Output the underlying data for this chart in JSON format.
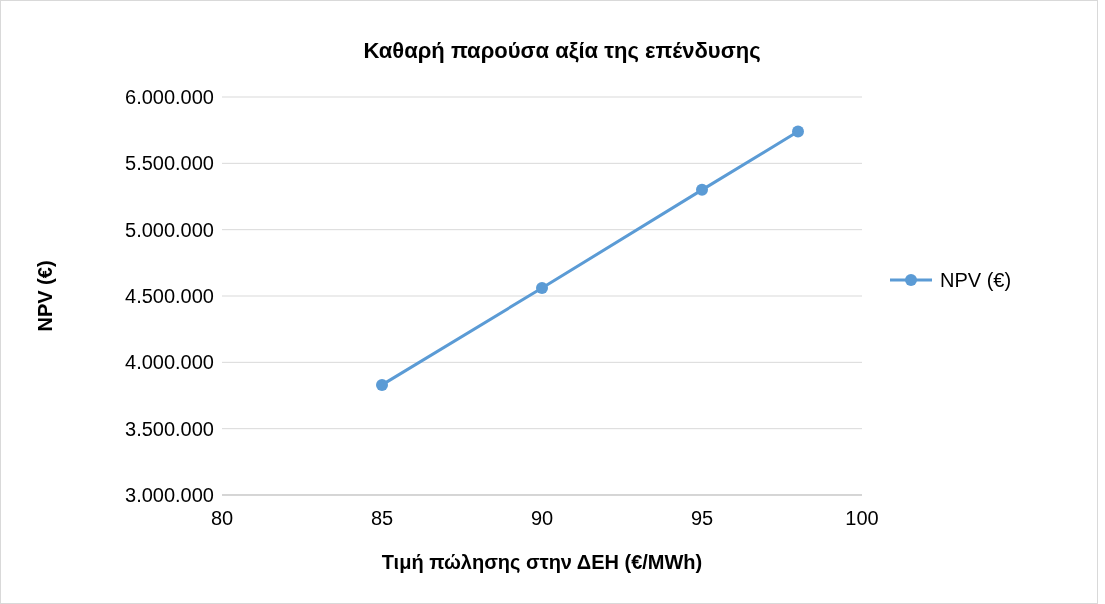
{
  "chart_data": {
    "type": "line",
    "title": "Καθαρή παρούσα αξία της επένδυσης",
    "xlabel": "Τιμή πώλησης στην ΔΕΗ (€/MWh)",
    "ylabel": "NPV (€)",
    "x": [
      85,
      90,
      95,
      98
    ],
    "series": [
      {
        "name": "NPV (€)",
        "color": "#5b9bd5",
        "values": [
          3830000,
          4560000,
          5300000,
          5740000
        ]
      }
    ],
    "xlim": [
      80,
      100
    ],
    "xticks": [
      80,
      85,
      90,
      95,
      100
    ],
    "ylim": [
      3000000,
      6000000
    ],
    "yticks": [
      {
        "value": 3000000,
        "label": "3.000.000"
      },
      {
        "value": 3500000,
        "label": "3.500.000"
      },
      {
        "value": 4000000,
        "label": "4.000.000"
      },
      {
        "value": 4500000,
        "label": "4.500.000"
      },
      {
        "value": 5000000,
        "label": "5.000.000"
      },
      {
        "value": 5500000,
        "label": "5.500.000"
      },
      {
        "value": 6000000,
        "label": "6.000.000"
      }
    ],
    "grid": "y",
    "legend": "right",
    "marker": "circle",
    "line_style": "solid"
  }
}
